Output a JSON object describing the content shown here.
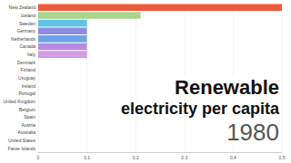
{
  "chart_data": {
    "type": "bar",
    "orientation": "horizontal",
    "title": "Renewable electricity per capita",
    "subtitle": "1980",
    "categories": [
      "New Zealand",
      "Iceland",
      "Sweden",
      "Germany",
      "Netherlands",
      "Canada",
      "Italy",
      "Denmark",
      "Finland",
      "Uruguay",
      "Ireland",
      "Portugal",
      "United Kingdom",
      "Belgium",
      "Spain",
      "Austria",
      "Australia",
      "United States",
      "Faroe Islands"
    ],
    "values": [
      0.5,
      0.21,
      0.1,
      0.1,
      0.1,
      0.1,
      0.1,
      0,
      0,
      0,
      0,
      0,
      0,
      0,
      0,
      0,
      0,
      0,
      0
    ],
    "colors": [
      "#ec5a3c",
      "#a8d48e",
      "#5ec4e6",
      "#8e8ce0",
      "#6aa6e2",
      "#b58be0",
      "#d59be6",
      "#f2b56b",
      "#7fd3c1",
      "#e3849a",
      "#9cc97a",
      "#f0d36b",
      "#8fb3e8",
      "#c9a27e",
      "#e89a6f",
      "#a5a5d8",
      "#7ec8a6",
      "#d88fb8",
      "#b0c4de"
    ],
    "xlim": [
      0,
      0.5
    ],
    "xticks": [
      0,
      0.1,
      0.2,
      0.3,
      0.4,
      0.5
    ],
    "grid": true
  }
}
